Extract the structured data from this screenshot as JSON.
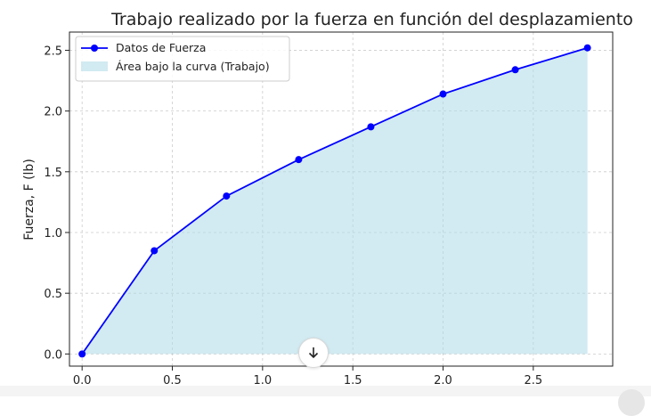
{
  "chart_data": {
    "type": "area",
    "title": "Trabajo realizado por la fuerza en función del desplazamiento",
    "xlabel": "",
    "ylabel": "Fuerza, F (lb)",
    "xlim": [
      -0.07,
      2.94
    ],
    "ylim": [
      -0.1,
      2.65
    ],
    "x_ticks": [
      0.0,
      0.5,
      1.0,
      1.5,
      2.0,
      2.5
    ],
    "x_tick_labels": [
      "0.0",
      "0.5",
      "1.0",
      "1.5",
      "2.0",
      "2.5"
    ],
    "y_ticks": [
      0.0,
      0.5,
      1.0,
      1.5,
      2.0,
      2.5
    ],
    "y_tick_labels": [
      "0.0",
      "0.5",
      "1.0",
      "1.5",
      "2.0",
      "2.5"
    ],
    "grid": true,
    "legend_position": "top-left",
    "series": [
      {
        "name": "Datos de Fuerza",
        "kind": "line-marker",
        "color": "#0000ff",
        "x": [
          0.0,
          0.4,
          0.8,
          1.2,
          1.6,
          2.0,
          2.4,
          2.8
        ],
        "y": [
          0.0,
          0.85,
          1.3,
          1.6,
          1.87,
          2.14,
          2.34,
          2.52
        ]
      },
      {
        "name": "Área bajo la curva (Trabajo)",
        "kind": "area",
        "color": "#add8e6",
        "x": [
          0.0,
          0.4,
          0.8,
          1.2,
          1.6,
          2.0,
          2.4,
          2.8
        ],
        "y": [
          0.0,
          0.85,
          1.3,
          1.6,
          1.87,
          2.14,
          2.34,
          2.52
        ]
      }
    ]
  },
  "ui": {
    "scroll_down_icon": "arrow-down-icon"
  }
}
